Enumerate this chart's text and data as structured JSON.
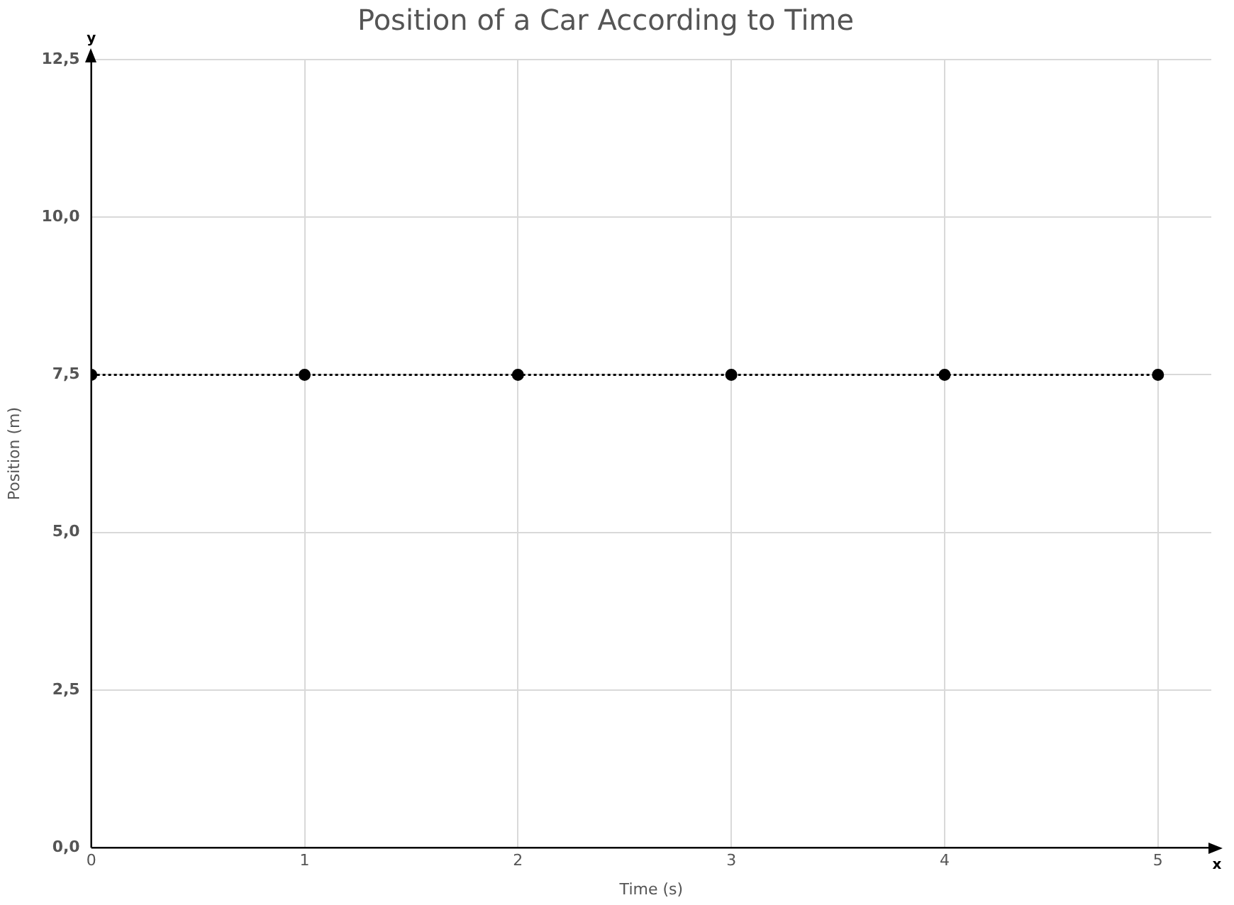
{
  "chart_data": {
    "type": "line",
    "title": "Position of a Car According to Time",
    "xlabel": "Time (s)",
    "ylabel": "Position (m)",
    "x": [
      0,
      1,
      2,
      3,
      4,
      5
    ],
    "series": [
      {
        "color": "#000000",
        "values": [
          7.5,
          7.5,
          7.5,
          7.5,
          7.5,
          7.5
        ]
      }
    ],
    "xlim": [
      0,
      5.25
    ],
    "xticks": [
      0,
      1,
      2,
      3,
      4,
      5
    ],
    "ylim": [
      0,
      12.5
    ],
    "yticks": [
      {
        "value": 0,
        "label": "0,0"
      },
      {
        "value": 2.5,
        "label": "2,5"
      },
      {
        "value": 5,
        "label": "5,0"
      },
      {
        "value": 7.5,
        "label": "7,5"
      },
      {
        "value": 10,
        "label": "10,0"
      },
      {
        "value": 12.5,
        "label": "12,5"
      }
    ],
    "grid": true,
    "legend": false,
    "marker": "circle",
    "line_style": "dotted",
    "annotations": [
      "x",
      "y"
    ]
  }
}
